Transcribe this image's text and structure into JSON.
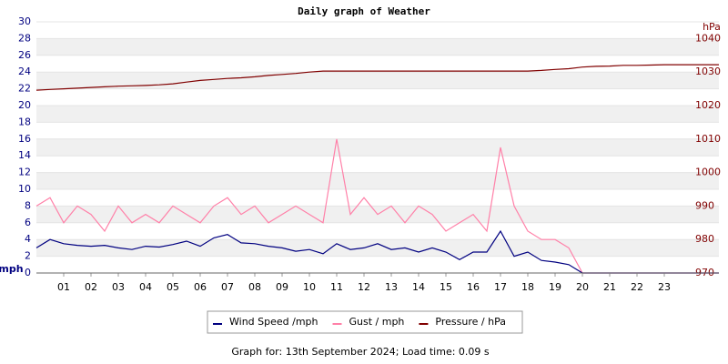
{
  "chart_data": {
    "type": "line",
    "title": "Daily graph of Weather",
    "y_label": "mph",
    "y2_label": "hPa",
    "x": [
      0,
      0.5,
      1,
      1.5,
      2,
      2.5,
      3,
      3.5,
      4,
      4.5,
      5,
      5.5,
      6,
      6.5,
      7,
      7.5,
      8,
      8.5,
      9,
      9.5,
      10,
      10.5,
      11,
      11.5,
      12,
      12.5,
      13,
      13.5,
      14,
      14.5,
      15,
      15.5,
      16,
      16.5,
      17,
      17.5,
      18,
      18.5,
      19,
      19.5,
      20,
      20.5,
      21,
      21.5,
      22,
      22.5,
      23,
      23.5,
      24,
      24.5,
      25
    ],
    "xlim": [
      0,
      25
    ],
    "xticks": [
      {
        "value": 1,
        "label": "01"
      },
      {
        "value": 2,
        "label": "02"
      },
      {
        "value": 3,
        "label": "03"
      },
      {
        "value": 4,
        "label": "04"
      },
      {
        "value": 5,
        "label": "05"
      },
      {
        "value": 6,
        "label": "06"
      },
      {
        "value": 7,
        "label": "07"
      },
      {
        "value": 8,
        "label": "08"
      },
      {
        "value": 9,
        "label": "09"
      },
      {
        "value": 10,
        "label": "10"
      },
      {
        "value": 11,
        "label": "11"
      },
      {
        "value": 12,
        "label": "12"
      },
      {
        "value": 13,
        "label": "13"
      },
      {
        "value": 14,
        "label": "14"
      },
      {
        "value": 15,
        "label": "15"
      },
      {
        "value": 16,
        "label": "16"
      },
      {
        "value": 17,
        "label": "17"
      },
      {
        "value": 18,
        "label": "18"
      },
      {
        "value": 19,
        "label": "19"
      },
      {
        "value": 20,
        "label": "20"
      },
      {
        "value": 21,
        "label": "21"
      },
      {
        "value": 22,
        "label": "22"
      },
      {
        "value": 23,
        "label": "23"
      }
    ],
    "ylim": [
      0,
      30
    ],
    "yticks": [
      0,
      2,
      4,
      6,
      8,
      10,
      12,
      14,
      16,
      18,
      20,
      22,
      24,
      26,
      28,
      30
    ],
    "y2lim": [
      970,
      1045
    ],
    "y2ticks": [
      970,
      980,
      990,
      1000,
      1010,
      1020,
      1030,
      1040
    ],
    "grid": true,
    "series": [
      {
        "name": "Wind Speed /mph",
        "color": "#000080",
        "values": [
          3,
          4,
          3.5,
          3.3,
          3.2,
          3.3,
          3,
          2.8,
          3.2,
          3.1,
          3.4,
          3.8,
          3.2,
          4.2,
          4.6,
          3.6,
          3.5,
          3.2,
          3,
          2.6,
          2.8,
          2.3,
          3.5,
          2.8,
          3,
          3.5,
          2.8,
          3,
          2.5,
          3,
          2.5,
          1.6,
          2.5,
          2.5,
          5,
          2,
          2.5,
          1.5,
          1.3,
          1,
          0,
          0,
          0,
          0,
          0,
          0,
          0,
          0,
          0,
          0,
          0
        ]
      },
      {
        "name": "Gust / mph",
        "color": "#ff80a8",
        "values": [
          8,
          9,
          6,
          8,
          7,
          5,
          8,
          6,
          7,
          6,
          8,
          7,
          6,
          8,
          9,
          7,
          8,
          6,
          7,
          8,
          7,
          6,
          16,
          7,
          9,
          7,
          8,
          6,
          8,
          7,
          5,
          6,
          7,
          5,
          15,
          8,
          5,
          4,
          4,
          3,
          0,
          0,
          0,
          0,
          0,
          0,
          0,
          0,
          0,
          0,
          0
        ]
      },
      {
        "name": "Pressure / hPa",
        "color": "#800000",
        "axis": "y2",
        "values": [
          1024.6,
          1024.8,
          1025,
          1025.2,
          1025.4,
          1025.6,
          1025.8,
          1025.9,
          1026,
          1026.2,
          1026.5,
          1027,
          1027.5,
          1027.8,
          1028.1,
          1028.3,
          1028.6,
          1029,
          1029.3,
          1029.6,
          1030,
          1030.3,
          1030.3,
          1030.3,
          1030.3,
          1030.3,
          1030.3,
          1030.3,
          1030.3,
          1030.3,
          1030.3,
          1030.3,
          1030.3,
          1030.3,
          1030.3,
          1030.3,
          1030.3,
          1030.5,
          1030.8,
          1031,
          1031.5,
          1031.7,
          1031.8,
          1032,
          1032,
          1032.1,
          1032.2,
          1032.2,
          1032.2,
          1032.2,
          1032.2
        ]
      }
    ],
    "footer": "Graph for: 13th September 2024; Load time: 0.09 s"
  }
}
